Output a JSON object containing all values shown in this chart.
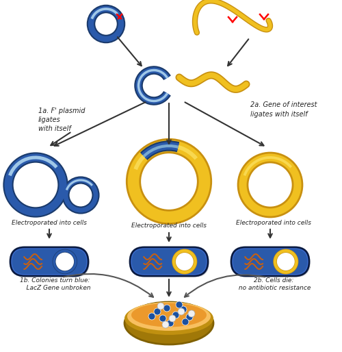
{
  "bg_color": "#ffffff",
  "colors": {
    "plasmid_blue_dark": "#1a3a6b",
    "plasmid_blue_mid": "#2a5aab",
    "plasmid_blue_light": "#7aaad0",
    "plasmid_blue_highlight": "#a0c8e8",
    "yellow": "#f0c020",
    "yellow_dark": "#c89010",
    "yellow_light": "#f8d850",
    "cell_blue": "#2a5aab",
    "cell_blue_dark": "#1a3060",
    "cell_blue_light": "#3a6acc",
    "orange_dna": "#c86010",
    "text": "#222222",
    "plate_orange": "#e89020",
    "plate_orange_light": "#f8c060",
    "plate_rim": "#b07010",
    "colony_blue": "#1a50a0",
    "colony_white": "#f0f0f0",
    "arrow": "#333333"
  },
  "texts": {
    "label_1a": "1a. F' plasmid\nligates\nwith itself",
    "label_2a": "2a. Gene of interest\nligates with itself",
    "label_electro_left": "Electroporated into cells",
    "label_electro_mid": "Electroporated into cells",
    "label_electro_right": "Electroporated into cells",
    "label_1b": "1b. Colonies turn blue:\n    LacZ Gene unbroken",
    "label_2b": "2b. Cells die:\n no antibiotic resistance"
  }
}
